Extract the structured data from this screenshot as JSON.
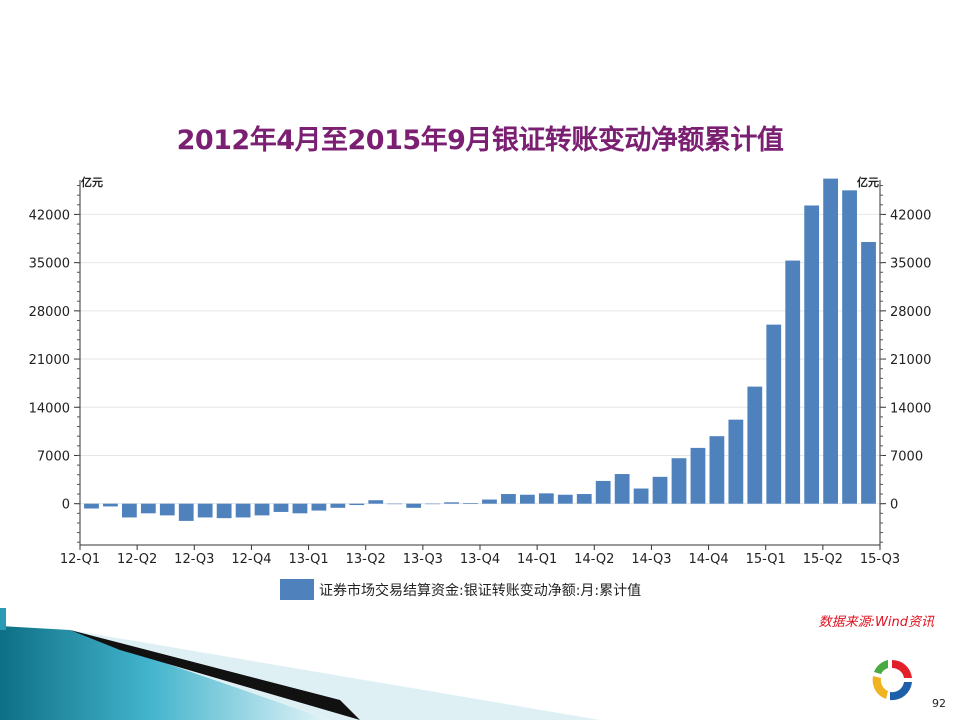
{
  "slide": {
    "title": "2012年4月至2015年9月银证转账变动净额累计值",
    "source": "数据来源:Wind资讯",
    "page_number": "92",
    "accent_color": "#7b1f72",
    "source_color": "#e0101e",
    "logo_icon": "circular-logo-icon",
    "footer_decoration_icon": "teal-swoosh-icon"
  },
  "chart_data": {
    "type": "bar",
    "y_unit_left": "亿元",
    "y_unit_right": "亿元",
    "ylim": [
      -6000,
      47000
    ],
    "y_ticks": [
      0,
      7000,
      14000,
      21000,
      28000,
      35000,
      42000
    ],
    "x_tick_labels": [
      "12-Q1",
      "12-Q2",
      "12-Q3",
      "12-Q4",
      "13-Q1",
      "13-Q2",
      "13-Q3",
      "13-Q4",
      "14-Q1",
      "14-Q2",
      "14-Q3",
      "14-Q4",
      "15-Q1",
      "15-Q2",
      "15-Q3"
    ],
    "legend_placement": "bottom-center",
    "grid": true,
    "bar_color": "#4f81bd",
    "series": [
      {
        "name": "证券市场交易结算资金:银证转账变动净额:月:累计值",
        "months": [
          "2012-04",
          "2012-05",
          "2012-06",
          "2012-07",
          "2012-08",
          "2012-09",
          "2012-10",
          "2012-11",
          "2012-12",
          "2013-01",
          "2013-02",
          "2013-03",
          "2013-04",
          "2013-05",
          "2013-06",
          "2013-07",
          "2013-08",
          "2013-09",
          "2013-10",
          "2013-11",
          "2013-12",
          "2014-01",
          "2014-02",
          "2014-03",
          "2014-04",
          "2014-05",
          "2014-06",
          "2014-07",
          "2014-08",
          "2014-09",
          "2014-10",
          "2014-11",
          "2014-12",
          "2015-01",
          "2015-02",
          "2015-03",
          "2015-04",
          "2015-05",
          "2015-06",
          "2015-07",
          "2015-08",
          "2015-09"
        ],
        "values": [
          -700,
          -400,
          -2000,
          -1400,
          -1700,
          -2500,
          -2000,
          -2100,
          -2000,
          -1700,
          -1200,
          -1400,
          -1000,
          -600,
          -200,
          500,
          0,
          -600,
          0,
          200,
          100,
          600,
          1400,
          1300,
          1500,
          1300,
          1400,
          3300,
          4300,
          2200,
          3900,
          6600,
          8100,
          9800,
          12200,
          17000,
          26000,
          35300,
          43300,
          47200,
          45500,
          38000
        ]
      }
    ]
  }
}
